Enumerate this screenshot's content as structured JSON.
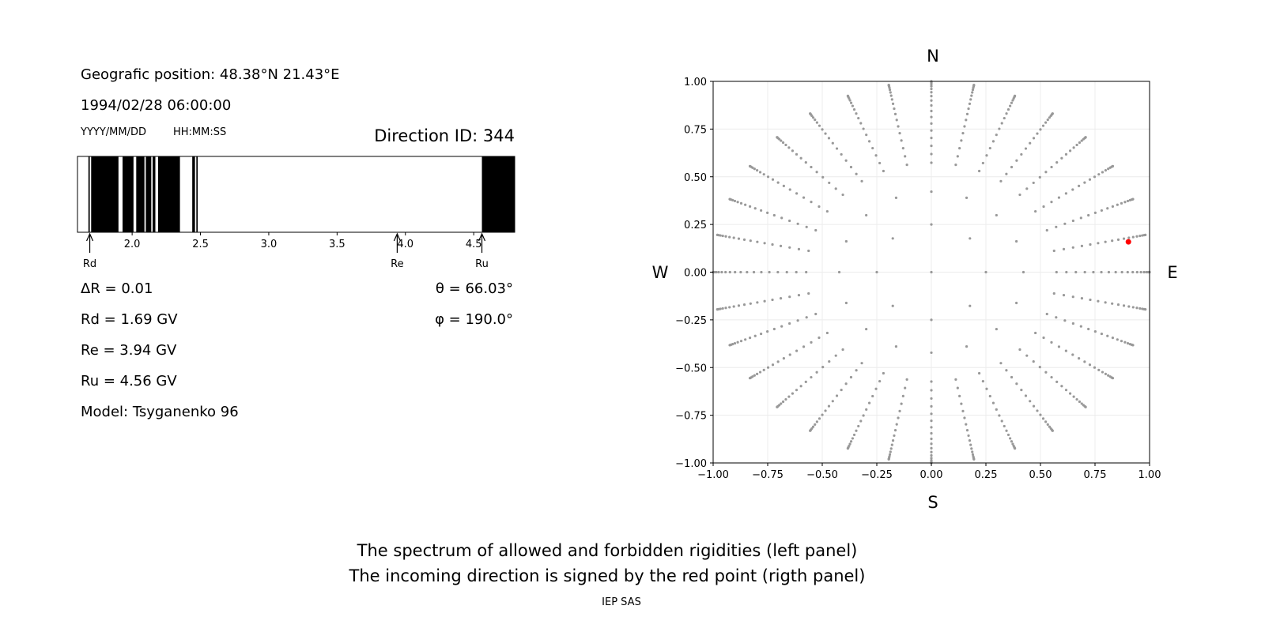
{
  "info": {
    "position": "Geografic position: 48.38°N 21.43°E",
    "datetime": "1994/02/28 06:00:00",
    "date_format": "YYYY/MM/DD",
    "time_format": "HH:MM:SS",
    "direction_id": "Direction ID: 344",
    "delta_r": "ΔR = 0.01",
    "rd": "Rd = 1.69 GV",
    "re": "Re = 3.94 GV",
    "ru": "Ru = 4.56 GV",
    "model": "Model: Tsyganenko 96",
    "theta": "θ = 66.03°",
    "phi": "φ = 190.0°"
  },
  "footer": {
    "line1": "The spectrum of allowed and forbidden rigidities (left panel)",
    "line2": "The incoming direction is signed by the red point (rigth panel)",
    "credit": "IEP SAS"
  },
  "chart_data": [
    {
      "type": "spectrum",
      "xlim": [
        1.6,
        4.8
      ],
      "x_ticks": [
        "2.0",
        "2.5",
        "3.0",
        "3.5",
        "4.0",
        "4.5"
      ],
      "forbidden_intervals": [
        [
          1.68,
          1.69
        ],
        [
          1.7,
          1.9
        ],
        [
          1.93,
          2.01
        ],
        [
          2.03,
          2.09
        ],
        [
          2.1,
          2.14
        ],
        [
          2.15,
          2.17
        ],
        [
          2.19,
          2.35
        ],
        [
          2.44,
          2.46
        ],
        [
          2.47,
          2.48
        ],
        [
          4.56,
          4.8
        ]
      ],
      "markers": [
        {
          "label": "Rd",
          "value": 1.69
        },
        {
          "label": "Re",
          "value": 3.94
        },
        {
          "label": "Ru",
          "value": 4.56
        }
      ]
    },
    {
      "type": "scatter",
      "xlim": [
        -1.0,
        1.0
      ],
      "ylim": [
        -1.0,
        1.0
      ],
      "x_ticks": [
        "−1.00",
        "−0.75",
        "−0.50",
        "−0.25",
        "0.00",
        "0.25",
        "0.50",
        "0.75",
        "1.00"
      ],
      "y_ticks": [
        "1.00",
        "0.75",
        "0.50",
        "0.25",
        "0.00",
        "−0.25",
        "−0.50",
        "−0.75",
        "−1.00"
      ],
      "grid": true,
      "compass": {
        "north": "N",
        "south": "S",
        "west": "W",
        "east": "E"
      },
      "series": [
        {
          "point_color": "#999999",
          "pattern": "directional grid: 1 center point, 8 points on circle r≈0.25, then 32 radial spokes every 11.25°"
        },
        {
          "point_color": "#ff0000",
          "points": [
            [
              0.903,
              0.159
            ]
          ]
        }
      ],
      "rings": [
        {
          "r": 0.25,
          "count": 8
        },
        {
          "r": 0.422,
          "count": 16
        }
      ],
      "spoke_count": 32
    }
  ]
}
